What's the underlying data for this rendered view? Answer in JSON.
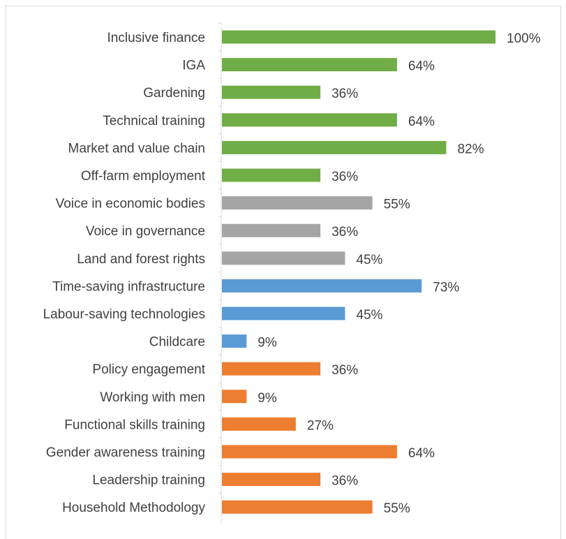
{
  "chart_data": {
    "type": "bar",
    "orientation": "horizontal",
    "title": "",
    "xlabel": "",
    "ylabel": "",
    "xlim": [
      0,
      100
    ],
    "grid": false,
    "legend": "none",
    "value_suffix": "%",
    "colors": {
      "green": "#70ad47",
      "gray": "#a5a5a5",
      "blue": "#5b9bd5",
      "orange": "#ed7d31"
    },
    "bars": [
      {
        "label": "Inclusive finance",
        "value": 100,
        "color": "green"
      },
      {
        "label": "IGA",
        "value": 64,
        "color": "green"
      },
      {
        "label": "Gardening",
        "value": 36,
        "color": "green"
      },
      {
        "label": "Technical training",
        "value": 64,
        "color": "green"
      },
      {
        "label": "Market and value chain",
        "value": 82,
        "color": "green"
      },
      {
        "label": "Off-farm employment",
        "value": 36,
        "color": "green"
      },
      {
        "label": "Voice in economic bodies",
        "value": 55,
        "color": "gray"
      },
      {
        "label": "Voice in governance",
        "value": 36,
        "color": "gray"
      },
      {
        "label": "Land and forest rights",
        "value": 45,
        "color": "gray"
      },
      {
        "label": "Time-saving infrastructure",
        "value": 73,
        "color": "blue"
      },
      {
        "label": "Labour-saving technologies",
        "value": 45,
        "color": "blue"
      },
      {
        "label": "Childcare",
        "value": 9,
        "color": "blue"
      },
      {
        "label": "Policy engagement",
        "value": 36,
        "color": "orange"
      },
      {
        "label": "Working with men",
        "value": 9,
        "color": "orange"
      },
      {
        "label": "Functional skills training",
        "value": 27,
        "color": "orange"
      },
      {
        "label": "Gender awareness training",
        "value": 64,
        "color": "orange"
      },
      {
        "label": "Leadership training",
        "value": 36,
        "color": "orange"
      },
      {
        "label": "Household Methodology",
        "value": 55,
        "color": "orange"
      }
    ]
  }
}
